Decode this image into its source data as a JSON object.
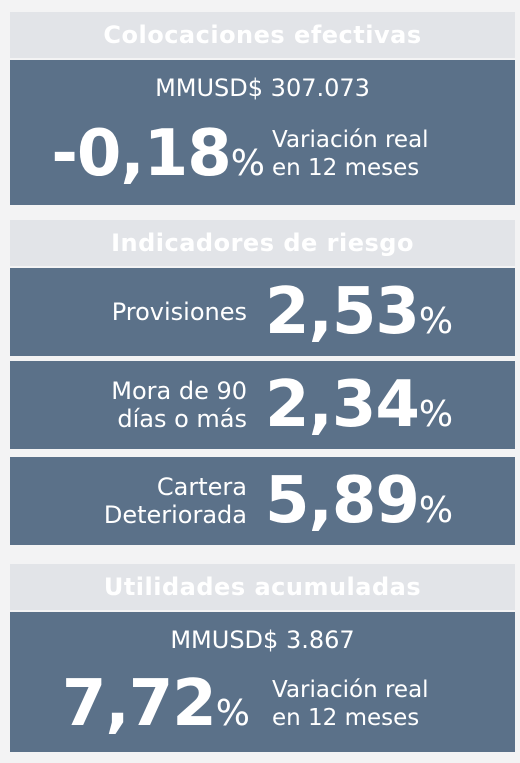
{
  "colocaciones": {
    "title": "Colocaciones efectivas",
    "amount": "MMUSD$ 307.073",
    "value": "-0,18",
    "unit": "%",
    "note": [
      "Variación real",
      "en 12 meses"
    ]
  },
  "riesgo": {
    "title": "Indicadores de riesgo",
    "items": [
      {
        "label": [
          "Provisiones"
        ],
        "value": "2,53",
        "unit": "%"
      },
      {
        "label": [
          "Mora de 90",
          "días o más"
        ],
        "value": "2,34",
        "unit": "%"
      },
      {
        "label": [
          "Cartera",
          "Deteriorada"
        ],
        "value": "5,89",
        "unit": "%"
      }
    ]
  },
  "utilidades": {
    "title": "Utilidades acumuladas",
    "amount": "MMUSD$ 3.867",
    "value": "7,72",
    "unit": "%",
    "note": [
      "Variación real",
      "en 12 meses"
    ]
  }
}
